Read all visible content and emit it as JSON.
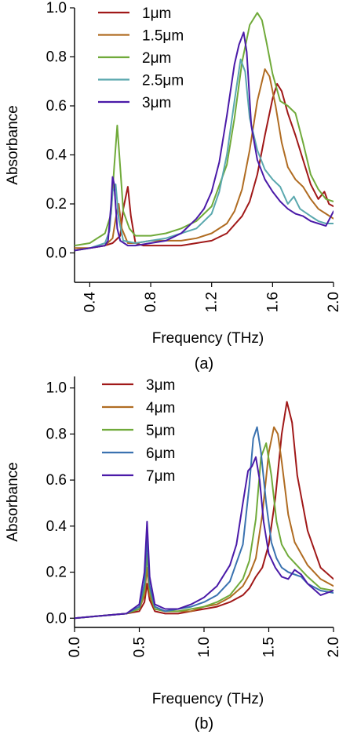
{
  "chart_data": [
    {
      "type": "line",
      "caption": "(a)",
      "xlabel": "Frequency (THz)",
      "ylabel": "Absorbance",
      "xlim": [
        0.3,
        2.0
      ],
      "ylim": [
        -0.12,
        1.0
      ],
      "xticks": [
        0.4,
        0.8,
        1.2,
        1.6,
        2.0
      ],
      "xtick_labels": [
        "0.4",
        "0.8",
        "1.2",
        "1.6",
        "2.0"
      ],
      "yticks": [
        0.0,
        0.2,
        0.4,
        0.6,
        0.8,
        1.0
      ],
      "ytick_labels": [
        "0.0",
        "0.2",
        "0.4",
        "0.6",
        "0.8",
        "1.0"
      ],
      "legend_position": "top-left",
      "series": [
        {
          "name": "1μm",
          "color": "#a01818",
          "x": [
            0.3,
            0.4,
            0.5,
            0.55,
            0.6,
            0.62,
            0.65,
            0.67,
            0.7,
            0.75,
            0.8,
            0.9,
            1.0,
            1.1,
            1.2,
            1.3,
            1.4,
            1.45,
            1.5,
            1.55,
            1.6,
            1.63,
            1.66,
            1.7,
            1.75,
            1.8,
            1.85,
            1.9,
            1.94,
            1.97,
            2.0
          ],
          "y": [
            0.01,
            0.02,
            0.03,
            0.04,
            0.07,
            0.18,
            0.27,
            0.15,
            0.04,
            0.03,
            0.03,
            0.03,
            0.03,
            0.04,
            0.05,
            0.08,
            0.15,
            0.21,
            0.32,
            0.48,
            0.63,
            0.69,
            0.66,
            0.57,
            0.48,
            0.38,
            0.28,
            0.22,
            0.25,
            0.2,
            0.19
          ]
        },
        {
          "name": "1.5μm",
          "color": "#b06c22",
          "x": [
            0.3,
            0.4,
            0.5,
            0.55,
            0.57,
            0.59,
            0.61,
            0.65,
            0.7,
            0.8,
            0.9,
            1.0,
            1.1,
            1.2,
            1.3,
            1.35,
            1.4,
            1.45,
            1.5,
            1.55,
            1.58,
            1.62,
            1.66,
            1.7,
            1.75,
            1.8,
            1.85,
            1.9,
            1.95,
            2.0
          ],
          "y": [
            0.02,
            0.02,
            0.03,
            0.06,
            0.14,
            0.2,
            0.1,
            0.04,
            0.04,
            0.05,
            0.05,
            0.05,
            0.06,
            0.08,
            0.12,
            0.17,
            0.26,
            0.42,
            0.62,
            0.75,
            0.72,
            0.6,
            0.45,
            0.35,
            0.3,
            0.27,
            0.22,
            0.18,
            0.16,
            0.14
          ]
        },
        {
          "name": "2μm",
          "color": "#70aa3a",
          "x": [
            0.3,
            0.4,
            0.5,
            0.54,
            0.56,
            0.58,
            0.6,
            0.62,
            0.66,
            0.7,
            0.8,
            0.9,
            1.0,
            1.1,
            1.2,
            1.3,
            1.35,
            1.4,
            1.45,
            1.5,
            1.53,
            1.56,
            1.6,
            1.65,
            1.7,
            1.75,
            1.8,
            1.85,
            1.9,
            1.95,
            2.0
          ],
          "y": [
            0.03,
            0.04,
            0.08,
            0.16,
            0.35,
            0.52,
            0.35,
            0.17,
            0.1,
            0.07,
            0.07,
            0.08,
            0.1,
            0.13,
            0.19,
            0.36,
            0.55,
            0.78,
            0.93,
            0.98,
            0.95,
            0.86,
            0.73,
            0.62,
            0.6,
            0.57,
            0.45,
            0.32,
            0.26,
            0.22,
            0.21
          ]
        },
        {
          "name": "2.5μm",
          "color": "#5aa8ae",
          "x": [
            0.3,
            0.4,
            0.5,
            0.53,
            0.55,
            0.57,
            0.59,
            0.62,
            0.7,
            0.8,
            0.9,
            1.0,
            1.1,
            1.2,
            1.25,
            1.3,
            1.35,
            1.39,
            1.42,
            1.45,
            1.5,
            1.55,
            1.6,
            1.65,
            1.7,
            1.74,
            1.78,
            1.85,
            1.9,
            1.95,
            2.0
          ],
          "y": [
            0.01,
            0.02,
            0.04,
            0.09,
            0.25,
            0.28,
            0.14,
            0.05,
            0.04,
            0.05,
            0.06,
            0.08,
            0.1,
            0.16,
            0.25,
            0.4,
            0.62,
            0.79,
            0.74,
            0.55,
            0.42,
            0.34,
            0.3,
            0.27,
            0.2,
            0.23,
            0.18,
            0.15,
            0.13,
            0.12,
            0.12
          ]
        },
        {
          "name": "3μm",
          "color": "#4a1aa8",
          "x": [
            0.3,
            0.4,
            0.5,
            0.52,
            0.54,
            0.55,
            0.56,
            0.58,
            0.6,
            0.65,
            0.7,
            0.8,
            0.9,
            1.0,
            1.1,
            1.15,
            1.2,
            1.25,
            1.3,
            1.35,
            1.38,
            1.41,
            1.43,
            1.46,
            1.5,
            1.55,
            1.6,
            1.65,
            1.7,
            1.75,
            1.8,
            1.85,
            1.9,
            1.95,
            2.0
          ],
          "y": [
            0.01,
            0.02,
            0.03,
            0.05,
            0.2,
            0.31,
            0.28,
            0.1,
            0.05,
            0.03,
            0.03,
            0.04,
            0.05,
            0.08,
            0.14,
            0.18,
            0.25,
            0.37,
            0.56,
            0.77,
            0.85,
            0.9,
            0.82,
            0.52,
            0.38,
            0.3,
            0.25,
            0.21,
            0.18,
            0.16,
            0.15,
            0.13,
            0.12,
            0.11,
            0.17
          ]
        }
      ]
    },
    {
      "type": "line",
      "caption": "(b)",
      "xlabel": "Frequency (THz)",
      "ylabel": "Absorbance",
      "xlim": [
        0.0,
        2.0
      ],
      "ylim": [
        -0.04,
        1.05
      ],
      "xticks": [
        0.0,
        0.5,
        1.0,
        1.5,
        2.0
      ],
      "xtick_labels": [
        "0.0",
        "0.5",
        "1.0",
        "1.5",
        "2.0"
      ],
      "yticks": [
        0.0,
        0.2,
        0.4,
        0.6,
        0.8,
        1.0
      ],
      "ytick_labels": [
        "0.0",
        "0.2",
        "0.4",
        "0.6",
        "0.8",
        "1.0"
      ],
      "legend_position": "top-left",
      "series": [
        {
          "name": "3μm",
          "color": "#a01818",
          "x": [
            0.0,
            0.2,
            0.4,
            0.5,
            0.54,
            0.56,
            0.58,
            0.62,
            0.7,
            0.8,
            0.9,
            1.0,
            1.1,
            1.2,
            1.3,
            1.35,
            1.4,
            1.45,
            1.5,
            1.55,
            1.6,
            1.64,
            1.68,
            1.72,
            1.8,
            1.9,
            2.0
          ],
          "y": [
            0.0,
            0.01,
            0.02,
            0.03,
            0.07,
            0.15,
            0.08,
            0.03,
            0.02,
            0.02,
            0.03,
            0.04,
            0.05,
            0.07,
            0.1,
            0.13,
            0.18,
            0.22,
            0.32,
            0.52,
            0.8,
            0.94,
            0.85,
            0.62,
            0.38,
            0.22,
            0.17
          ]
        },
        {
          "name": "4μm",
          "color": "#b06c22",
          "x": [
            0.0,
            0.2,
            0.4,
            0.5,
            0.54,
            0.56,
            0.58,
            0.62,
            0.7,
            0.8,
            0.9,
            1.0,
            1.1,
            1.2,
            1.3,
            1.35,
            1.4,
            1.45,
            1.5,
            1.54,
            1.57,
            1.6,
            1.65,
            1.7,
            1.8,
            1.9,
            2.0
          ],
          "y": [
            0.0,
            0.01,
            0.02,
            0.04,
            0.1,
            0.22,
            0.1,
            0.04,
            0.03,
            0.03,
            0.03,
            0.05,
            0.06,
            0.09,
            0.14,
            0.19,
            0.26,
            0.45,
            0.72,
            0.83,
            0.8,
            0.68,
            0.45,
            0.33,
            0.23,
            0.17,
            0.14
          ]
        },
        {
          "name": "5μm",
          "color": "#70aa3a",
          "x": [
            0.0,
            0.2,
            0.4,
            0.5,
            0.54,
            0.56,
            0.58,
            0.62,
            0.7,
            0.8,
            0.9,
            1.0,
            1.1,
            1.2,
            1.3,
            1.35,
            1.4,
            1.44,
            1.48,
            1.52,
            1.56,
            1.6,
            1.65,
            1.7,
            1.8,
            1.9,
            2.0
          ],
          "y": [
            0.0,
            0.01,
            0.02,
            0.04,
            0.12,
            0.28,
            0.12,
            0.04,
            0.03,
            0.03,
            0.04,
            0.05,
            0.07,
            0.1,
            0.17,
            0.25,
            0.43,
            0.7,
            0.76,
            0.62,
            0.42,
            0.32,
            0.27,
            0.24,
            0.18,
            0.13,
            0.12
          ]
        },
        {
          "name": "6μm",
          "color": "#3a72b0",
          "x": [
            0.0,
            0.2,
            0.4,
            0.5,
            0.54,
            0.56,
            0.58,
            0.62,
            0.7,
            0.8,
            0.9,
            1.0,
            1.1,
            1.2,
            1.3,
            1.35,
            1.38,
            1.41,
            1.44,
            1.48,
            1.52,
            1.56,
            1.6,
            1.65,
            1.7,
            1.75,
            1.8,
            1.9,
            2.0
          ],
          "y": [
            0.0,
            0.01,
            0.02,
            0.05,
            0.15,
            0.35,
            0.14,
            0.05,
            0.03,
            0.04,
            0.05,
            0.07,
            0.1,
            0.16,
            0.32,
            0.58,
            0.78,
            0.83,
            0.72,
            0.5,
            0.33,
            0.26,
            0.22,
            0.2,
            0.19,
            0.18,
            0.15,
            0.12,
            0.11
          ]
        },
        {
          "name": "7μm",
          "color": "#4a1aa8",
          "x": [
            0.0,
            0.2,
            0.4,
            0.5,
            0.54,
            0.56,
            0.58,
            0.62,
            0.7,
            0.8,
            0.9,
            1.0,
            1.1,
            1.2,
            1.25,
            1.3,
            1.34,
            1.37,
            1.4,
            1.43,
            1.46,
            1.5,
            1.55,
            1.6,
            1.65,
            1.7,
            1.75,
            1.8,
            1.9,
            2.0
          ],
          "y": [
            0.0,
            0.01,
            0.02,
            0.06,
            0.2,
            0.42,
            0.18,
            0.06,
            0.04,
            0.04,
            0.06,
            0.09,
            0.14,
            0.23,
            0.32,
            0.5,
            0.64,
            0.66,
            0.7,
            0.6,
            0.42,
            0.28,
            0.22,
            0.18,
            0.17,
            0.21,
            0.19,
            0.15,
            0.1,
            0.12
          ]
        }
      ]
    }
  ]
}
